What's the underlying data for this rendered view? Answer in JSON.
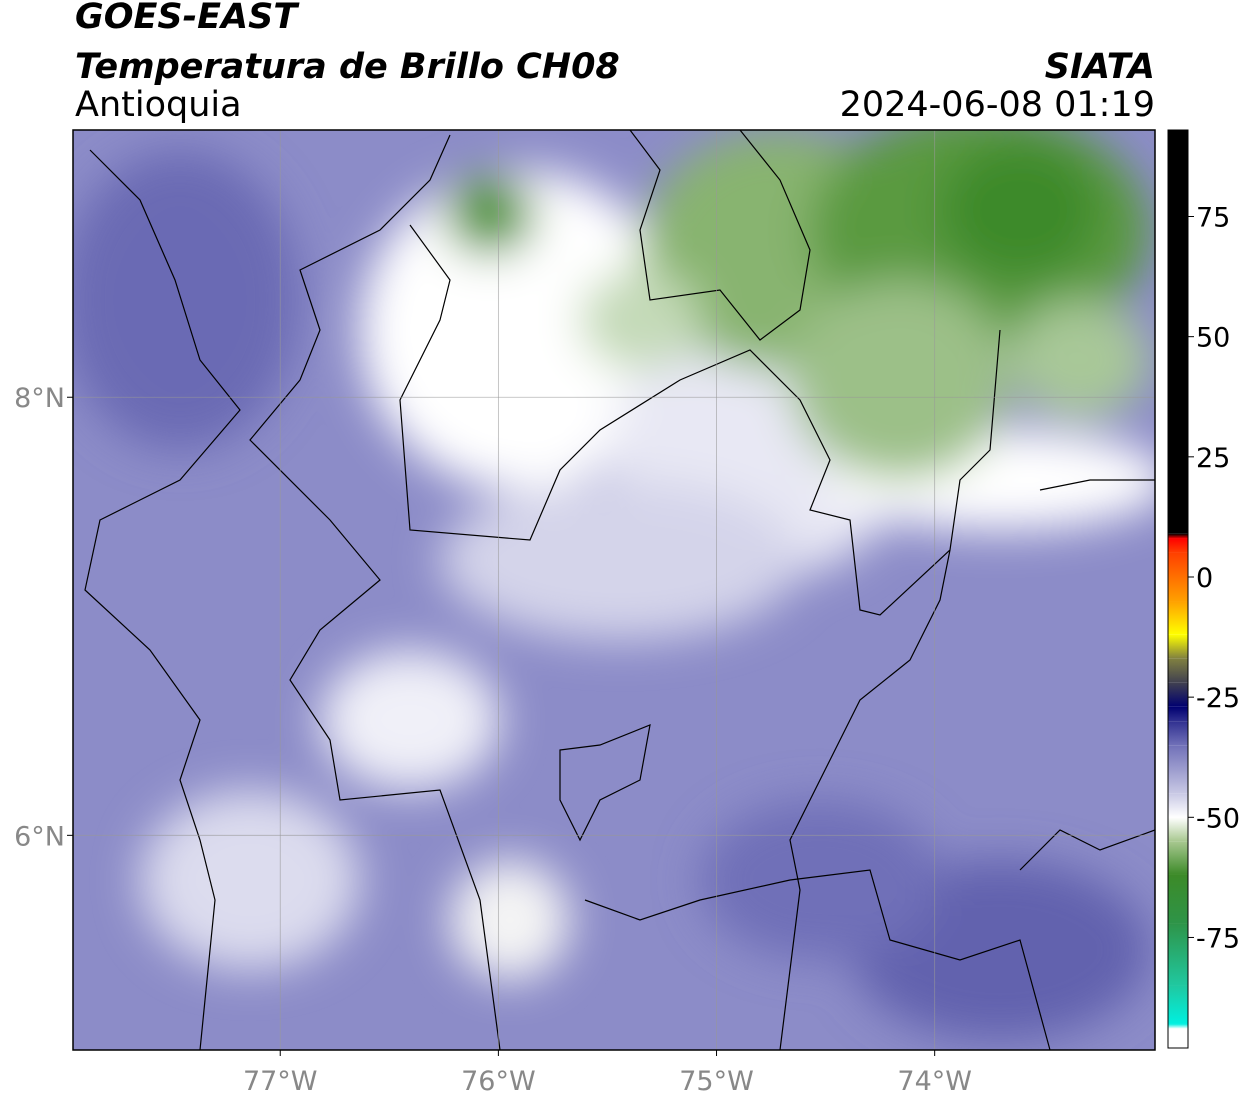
{
  "header": {
    "satellite": "GOES-EAST",
    "product": "Temperatura de Brillo CH08",
    "region": "Antioquia",
    "source": "SIATA",
    "datetime": "2024-06-08 01:19"
  },
  "map": {
    "lonlim": [
      -77.95,
      -72.99
    ],
    "latlim": [
      5.02,
      9.22
    ],
    "xticks": [
      {
        "value": -77,
        "label": "77°W"
      },
      {
        "value": -76,
        "label": "76°W"
      },
      {
        "value": -75,
        "label": "75°W"
      },
      {
        "value": -74,
        "label": "74°W"
      }
    ],
    "yticks": [
      {
        "value": 6,
        "label": "6°N"
      },
      {
        "value": 8,
        "label": "8°N"
      }
    ],
    "grid": true
  },
  "colorbar": {
    "lim": [
      -98,
      93
    ],
    "ticks": [
      -75,
      -50,
      -25,
      0,
      25,
      50,
      75
    ],
    "stops": [
      {
        "value": -98,
        "color": "#ffffff"
      },
      {
        "value": -94,
        "color": "#ffffff"
      },
      {
        "value": -93,
        "color": "#00f0e0"
      },
      {
        "value": -85,
        "color": "#20c8a0"
      },
      {
        "value": -72,
        "color": "#2e9448"
      },
      {
        "value": -62,
        "color": "#3c8a28"
      },
      {
        "value": -55,
        "color": "#a8c890"
      },
      {
        "value": -50,
        "color": "#ffffff"
      },
      {
        "value": -45,
        "color": "#c8c8e4"
      },
      {
        "value": -35,
        "color": "#7070b8"
      },
      {
        "value": -30,
        "color": "#303090"
      },
      {
        "value": -27,
        "color": "#000070"
      },
      {
        "value": -22,
        "color": "#404050"
      },
      {
        "value": -17,
        "color": "#808040"
      },
      {
        "value": -12,
        "color": "#ffff00"
      },
      {
        "value": -5,
        "color": "#ffa000"
      },
      {
        "value": 5,
        "color": "#ff4000"
      },
      {
        "value": 8,
        "color": "#ff0000"
      },
      {
        "value": 9,
        "color": "#000000"
      },
      {
        "value": 93,
        "color": "#000000"
      }
    ]
  }
}
